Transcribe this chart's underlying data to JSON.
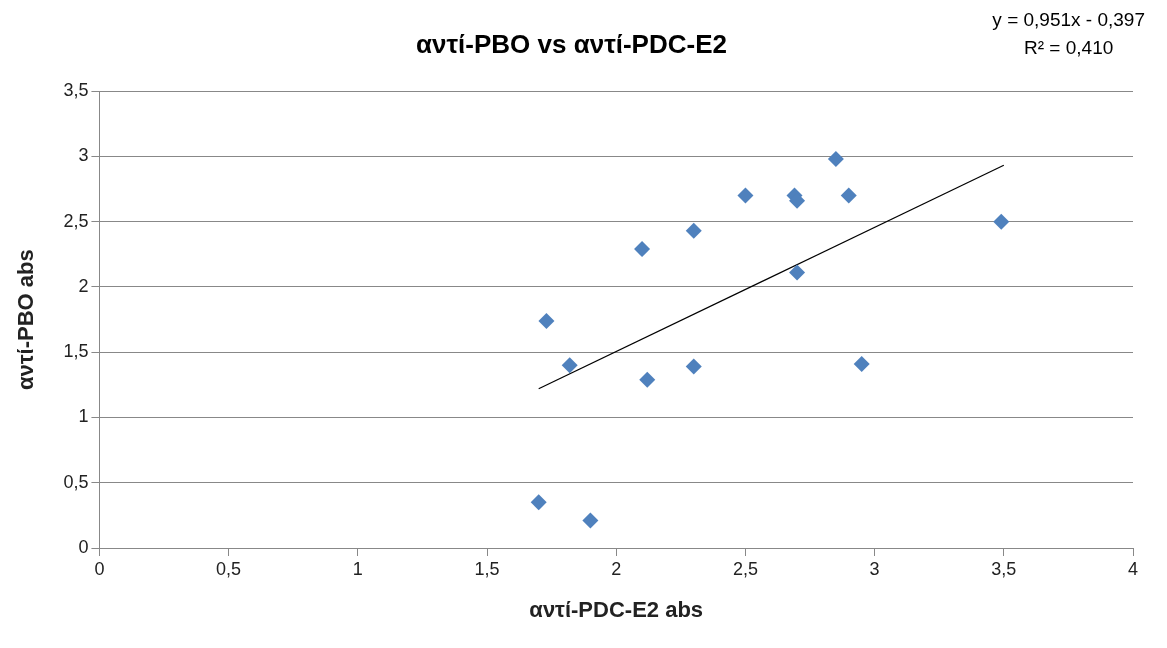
{
  "chart_data": {
    "type": "scatter",
    "title": "αντί-PBO vs αντί-PDC-E2",
    "xlabel": "αντί-PDC-E2 abs",
    "ylabel": "αντί-PBO abs",
    "annotations": [
      "y = 0,951x - 0,397",
      "R² = 0,410"
    ],
    "xlim": [
      0,
      4
    ],
    "xticks": [
      0,
      {
        "value": 0.5,
        "label": "0,5"
      },
      1,
      {
        "value": 1.5,
        "label": "1,5"
      },
      2,
      {
        "value": 2.5,
        "label": "2,5"
      },
      3,
      {
        "value": 3.5,
        "label": "3,5"
      },
      4
    ],
    "ylim": [
      0,
      3.5
    ],
    "yticks": [
      0,
      {
        "value": 0.5,
        "label": "0,5"
      },
      1,
      {
        "value": 1.5,
        "label": "1,5"
      },
      2,
      {
        "value": 2.5,
        "label": "2,5"
      },
      3,
      {
        "value": 3.5,
        "label": "3,5"
      }
    ],
    "grid": "y",
    "legend": false,
    "series": [
      {
        "marker": "diamond",
        "color": "#4f81bd",
        "x": [
          1.7,
          1.9,
          1.73,
          1.82,
          2.1,
          2.12,
          2.3,
          2.3,
          2.5,
          2.69,
          2.7,
          2.7,
          2.85,
          2.9,
          2.95,
          3.49
        ],
        "values": [
          0.35,
          0.21,
          1.74,
          1.4,
          2.29,
          1.29,
          2.43,
          1.39,
          2.7,
          2.7,
          2.66,
          2.11,
          2.98,
          2.7,
          1.41,
          2.5
        ]
      },
      {
        "type": "line",
        "marker": "none",
        "color": "#000000",
        "x": [
          1.7,
          3.5
        ],
        "values": [
          1.22,
          2.932
        ]
      }
    ]
  }
}
